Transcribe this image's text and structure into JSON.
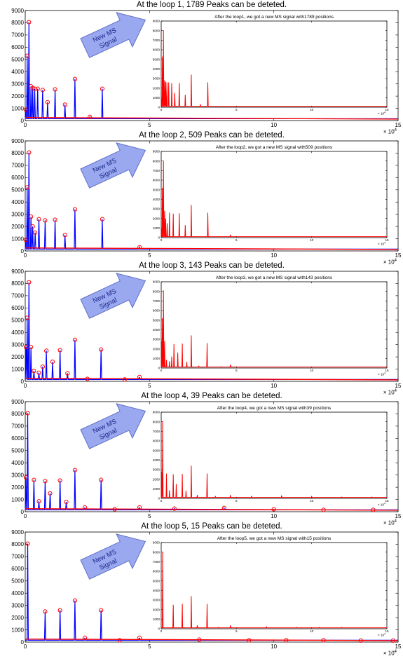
{
  "panels": [
    {
      "title": "At the loop 1, 1789 Peaks can be deteted.",
      "inset_title": "After the loop1, we got a new MS signal with1789 positions",
      "callout_lines": [
        "New MS",
        "Signal"
      ],
      "main_color": "#0000ff",
      "marker_color": "#ff0000",
      "inset_color": "#ff0000"
    },
    {
      "title": "At the loop 2, 509 Peaks can be deteted.",
      "inset_title": "After the loop2, we got a new MS signal with509 positions",
      "callout_lines": [
        "New MS",
        "Signal"
      ],
      "main_color": "#0000ff",
      "marker_color": "#ff0000",
      "inset_color": "#ff0000"
    },
    {
      "title": "At the loop 3, 143 Peaks can be deteted.",
      "inset_title": "After the loop3, we got a new MS signal with143 positions",
      "callout_lines": [
        "New MS",
        "Signal"
      ],
      "main_color": "#0000ff",
      "marker_color": "#ff0000",
      "inset_color": "#ff0000"
    },
    {
      "title": "At the loop 4, 39 Peaks can be deteted.",
      "inset_title": "After the loop4, we got a new MS signal with39 positions",
      "callout_lines": [
        "New MS",
        "Signal"
      ],
      "main_color": "#0000ff",
      "marker_color": "#ff0000",
      "inset_color": "#ff0000"
    },
    {
      "title": "At the loop 5, 15 Peaks can be deteted.",
      "inset_title": "After the loop5, we got a new MS signal with15 positions",
      "callout_lines": [
        "New MS",
        "Signal"
      ],
      "main_color": "#0000ff",
      "marker_color": "#ff0000",
      "inset_color": "#ff0000"
    }
  ],
  "chart_data": [
    {
      "type": "line",
      "title": "At the loop 1, 1789 Peaks can be deteted.",
      "xlim": [
        0,
        150000
      ],
      "ylim": [
        0,
        9000
      ],
      "x_ticks": [
        0,
        50000,
        100000,
        150000
      ],
      "x_tick_labels": [
        "0",
        "5",
        "10",
        "15"
      ],
      "x_multiplier_label": "× 10",
      "x_multiplier_exp": "4",
      "y_ticks": [
        0,
        1000,
        2000,
        3000,
        4000,
        5000,
        6000,
        7000,
        8000,
        9000
      ],
      "series": [
        {
          "x": [
            200,
            800,
            1500,
            2300,
            3000,
            3800,
            5000,
            7000,
            9000,
            12000,
            16000,
            20000,
            26000,
            31000
          ],
          "values": [
            900,
            5300,
            8050,
            2800,
            2650,
            2600,
            2600,
            2500,
            1500,
            2550,
            1300,
            3400,
            300,
            2600
          ]
        },
        {
          "x": [
            200,
            800,
            1500,
            2300,
            3000,
            3800,
            5000,
            7000,
            9000,
            12000,
            16000,
            20000,
            26000,
            31000
          ],
          "values": [
            900,
            5300,
            8050,
            2800,
            2650,
            2600,
            2600,
            2500,
            1500,
            2550,
            1300,
            3400,
            300,
            2600
          ]
        }
      ],
      "inset": {
        "title": "After the loop1, we got a new MS signal with1789 positions",
        "xlim": [
          0,
          150000
        ],
        "ylim": [
          0,
          9000
        ],
        "x_ticks": [
          0,
          50000,
          100000,
          150000
        ],
        "x_tick_labels": [
          "0",
          "5",
          "10",
          "15"
        ],
        "x_multiplier_label": "× 10",
        "x_multiplier_exp": "4",
        "y_ticks": [
          0,
          1000,
          2000,
          3000,
          4000,
          5000,
          6000,
          7000,
          8000,
          9000
        ],
        "series": [
          {
            "x": [
              200,
              800,
              1500,
              2300,
              3000,
              3800,
              5000,
              7000,
              9000,
              12000,
              16000,
              20000,
              26000,
              31000
            ],
            "values": [
              900,
              5300,
              8050,
              2800,
              2650,
              2600,
              2600,
              2500,
              1500,
              2550,
              1300,
              3400,
              300,
              2600
            ]
          }
        ]
      }
    },
    {
      "type": "line",
      "title": "At the loop 2, 509 Peaks can be deteted.",
      "xlim": [
        0,
        150000
      ],
      "ylim": [
        0,
        9000
      ],
      "x_ticks": [
        0,
        50000,
        100000,
        150000
      ],
      "x_tick_labels": [
        "0",
        "5",
        "10",
        "15"
      ],
      "x_multiplier_label": "× 10",
      "x_multiplier_exp": "4",
      "y_ticks": [
        0,
        1000,
        2000,
        3000,
        4000,
        5000,
        6000,
        7000,
        8000,
        9000
      ],
      "series": [
        {
          "x": [
            200,
            800,
            1500,
            2300,
            3000,
            4000,
            5500,
            8000,
            12000,
            16000,
            20000,
            31000,
            46000
          ],
          "values": [
            900,
            5200,
            8050,
            2800,
            2000,
            1500,
            2600,
            2500,
            2550,
            1300,
            3400,
            2600,
            300
          ]
        },
        {
          "x": [
            200,
            800,
            1500,
            2300,
            3000,
            4000,
            5500,
            8000,
            12000,
            16000,
            20000,
            31000,
            46000
          ],
          "values": [
            900,
            5200,
            8050,
            2800,
            2000,
            1500,
            2600,
            2500,
            2550,
            1300,
            3400,
            2600,
            300
          ]
        }
      ],
      "inset": {
        "title": "After the loop2, we got a new MS signal with509 positions",
        "xlim": [
          0,
          150000
        ],
        "ylim": [
          0,
          9000
        ],
        "x_ticks": [
          0,
          50000,
          100000,
          150000
        ],
        "x_tick_labels": [
          "0",
          "5",
          "10",
          "15"
        ],
        "x_multiplier_label": "× 10",
        "x_multiplier_exp": "4",
        "y_ticks": [
          0,
          1000,
          2000,
          3000,
          4000,
          5000,
          6000,
          7000,
          8000,
          9000
        ],
        "series": [
          {
            "x": [
              200,
              800,
              1500,
              2300,
              3000,
              4000,
              5500,
              8000,
              12000,
              16000,
              20000,
              31000,
              46000
            ],
            "values": [
              900,
              5200,
              8050,
              2800,
              2000,
              1500,
              2600,
              2500,
              2550,
              1300,
              3400,
              2600,
              300
            ]
          }
        ]
      }
    },
    {
      "type": "line",
      "title": "At the loop 3, 143 Peaks can be deteted.",
      "xlim": [
        0,
        150000
      ],
      "ylim": [
        0,
        9000
      ],
      "x_ticks": [
        0,
        50000,
        100000,
        150000
      ],
      "x_tick_labels": [
        "0",
        "5",
        "10",
        "15"
      ],
      "x_multiplier_label": "× 10",
      "x_multiplier_exp": "4",
      "y_ticks": [
        0,
        1000,
        2000,
        3000,
        4000,
        5000,
        6000,
        7000,
        8000,
        9000
      ],
      "series": [
        {
          "x": [
            300,
            800,
            1500,
            2300,
            3500,
            5500,
            7000,
            8500,
            11000,
            14000,
            17000,
            20000,
            25000,
            30500,
            40000,
            46000
          ],
          "values": [
            2800,
            5200,
            8100,
            2800,
            850,
            700,
            1200,
            2500,
            1600,
            2550,
            650,
            3400,
            200,
            2600,
            150,
            350
          ]
        },
        {
          "x": [
            300,
            800,
            1500,
            2300,
            3500,
            5500,
            7000,
            8500,
            11000,
            14000,
            17000,
            20000,
            25000,
            30500,
            40000,
            46000
          ],
          "values": [
            2800,
            5200,
            8100,
            2800,
            850,
            700,
            1200,
            2500,
            1600,
            2550,
            650,
            3400,
            200,
            2600,
            150,
            350
          ]
        }
      ],
      "inset": {
        "title": "After the loop3, we got a new MS signal with143 positions",
        "xlim": [
          0,
          150000
        ],
        "ylim": [
          0,
          9000
        ],
        "x_ticks": [
          0,
          50000,
          100000,
          150000
        ],
        "x_tick_labels": [
          "0",
          "5",
          "10",
          "15"
        ],
        "x_multiplier_label": "× 10",
        "x_multiplier_exp": "4",
        "y_ticks": [
          0,
          1000,
          2000,
          3000,
          4000,
          5000,
          6000,
          7000,
          8000,
          9000
        ],
        "series": [
          {
            "x": [
              300,
              800,
              1500,
              2300,
              3500,
              5500,
              7000,
              8500,
              11000,
              14000,
              17000,
              20000,
              25000,
              30500,
              40000,
              46000
            ],
            "values": [
              2800,
              5200,
              8100,
              2800,
              850,
              700,
              1200,
              2500,
              1600,
              2550,
              650,
              3400,
              200,
              2600,
              150,
              350
            ]
          }
        ]
      }
    },
    {
      "type": "line",
      "title": "At the loop 4, 39 Peaks can be deteted.",
      "xlim": [
        0,
        150000
      ],
      "ylim": [
        0,
        9000
      ],
      "x_ticks": [
        0,
        50000,
        100000,
        150000
      ],
      "x_tick_labels": [
        "0",
        "5",
        "10",
        "15"
      ],
      "x_multiplier_label": "× 10",
      "x_multiplier_exp": "4",
      "y_ticks": [
        0,
        1000,
        2000,
        3000,
        4000,
        5000,
        6000,
        7000,
        8000,
        9000
      ],
      "series": [
        {
          "x": [
            300,
            1000,
            3500,
            5500,
            8000,
            10000,
            14000,
            16500,
            20000,
            24000,
            30500,
            36000,
            46000,
            60000,
            80000,
            100000,
            120000,
            140000
          ],
          "values": [
            2800,
            8050,
            2600,
            850,
            2500,
            1500,
            2550,
            800,
            3400,
            350,
            2600,
            200,
            350,
            250,
            300,
            200,
            150,
            150
          ]
        },
        {
          "x": [
            300,
            1000,
            3500,
            5500,
            8000,
            10000,
            14000,
            16500,
            20000,
            24000,
            30500,
            36000,
            46000,
            60000,
            80000,
            100000,
            120000,
            140000
          ],
          "values": [
            2800,
            8050,
            2600,
            850,
            2500,
            1500,
            2550,
            800,
            3400,
            350,
            2600,
            200,
            350,
            250,
            300,
            200,
            150,
            150
          ]
        }
      ],
      "inset": {
        "title": "After the loop4, we got a new MS signal with39 positions",
        "xlim": [
          0,
          150000
        ],
        "ylim": [
          0,
          9000
        ],
        "x_ticks": [
          0,
          50000,
          100000,
          150000
        ],
        "x_tick_labels": [
          "0",
          "5",
          "10",
          "15"
        ],
        "x_multiplier_label": "× 10",
        "x_multiplier_exp": "4",
        "y_ticks": [
          0,
          1000,
          2000,
          3000,
          4000,
          5000,
          6000,
          7000,
          8000,
          9000
        ],
        "series": [
          {
            "x": [
              300,
              1000,
              3500,
              5500,
              8000,
              10000,
              14000,
              16500,
              20000,
              24000,
              30500,
              36000,
              46000,
              60000,
              80000,
              100000,
              120000,
              140000
            ],
            "values": [
              2800,
              8050,
              2600,
              850,
              2500,
              1500,
              2550,
              800,
              3400,
              350,
              2600,
              200,
              350,
              250,
              300,
              200,
              150,
              150
            ]
          }
        ]
      }
    },
    {
      "type": "line",
      "title": "At the loop 5, 15 Peaks can be deteted.",
      "xlim": [
        0,
        150000
      ],
      "ylim": [
        0,
        9000
      ],
      "x_ticks": [
        0,
        50000,
        100000,
        150000
      ],
      "x_tick_labels": [
        "0",
        "5",
        "10",
        "15"
      ],
      "x_multiplier_label": "× 10",
      "x_multiplier_exp": "4",
      "y_ticks": [
        0,
        1000,
        2000,
        3000,
        4000,
        5000,
        6000,
        7000,
        8000,
        9000
      ],
      "series": [
        {
          "x": [
            1000,
            8000,
            14000,
            20000,
            24000,
            30500,
            38000,
            46000,
            70000,
            90000,
            105000,
            120000,
            135000,
            148000
          ],
          "values": [
            8050,
            2500,
            2600,
            3400,
            350,
            2600,
            150,
            350,
            200,
            150,
            150,
            150,
            120,
            120
          ]
        },
        {
          "x": [
            1000,
            8000,
            14000,
            20000,
            24000,
            30500,
            38000,
            46000,
            70000,
            90000,
            105000,
            120000,
            135000,
            148000
          ],
          "values": [
            8050,
            2500,
            2600,
            3400,
            350,
            2600,
            150,
            350,
            200,
            150,
            150,
            150,
            120,
            120
          ]
        }
      ],
      "inset": {
        "title": "After the loop5, we got a new MS signal with15 positions",
        "xlim": [
          0,
          150000
        ],
        "ylim": [
          0,
          9000
        ],
        "x_ticks": [
          0,
          50000,
          100000,
          150000
        ],
        "x_tick_labels": [
          "0",
          "5",
          "10",
          "15"
        ],
        "x_multiplier_label": "× 10",
        "x_multiplier_exp": "4",
        "y_ticks": [
          0,
          1000,
          2000,
          3000,
          4000,
          5000,
          6000,
          7000,
          8000,
          9000
        ],
        "series": [
          {
            "x": [
              1000,
              8000,
              14000,
              20000,
              24000,
              30500,
              38000,
              46000,
              70000,
              90000,
              105000,
              120000,
              135000,
              148000
            ],
            "values": [
              8050,
              2500,
              2600,
              3400,
              350,
              2600,
              150,
              350,
              200,
              150,
              150,
              150,
              120,
              120
            ]
          }
        ]
      }
    }
  ]
}
